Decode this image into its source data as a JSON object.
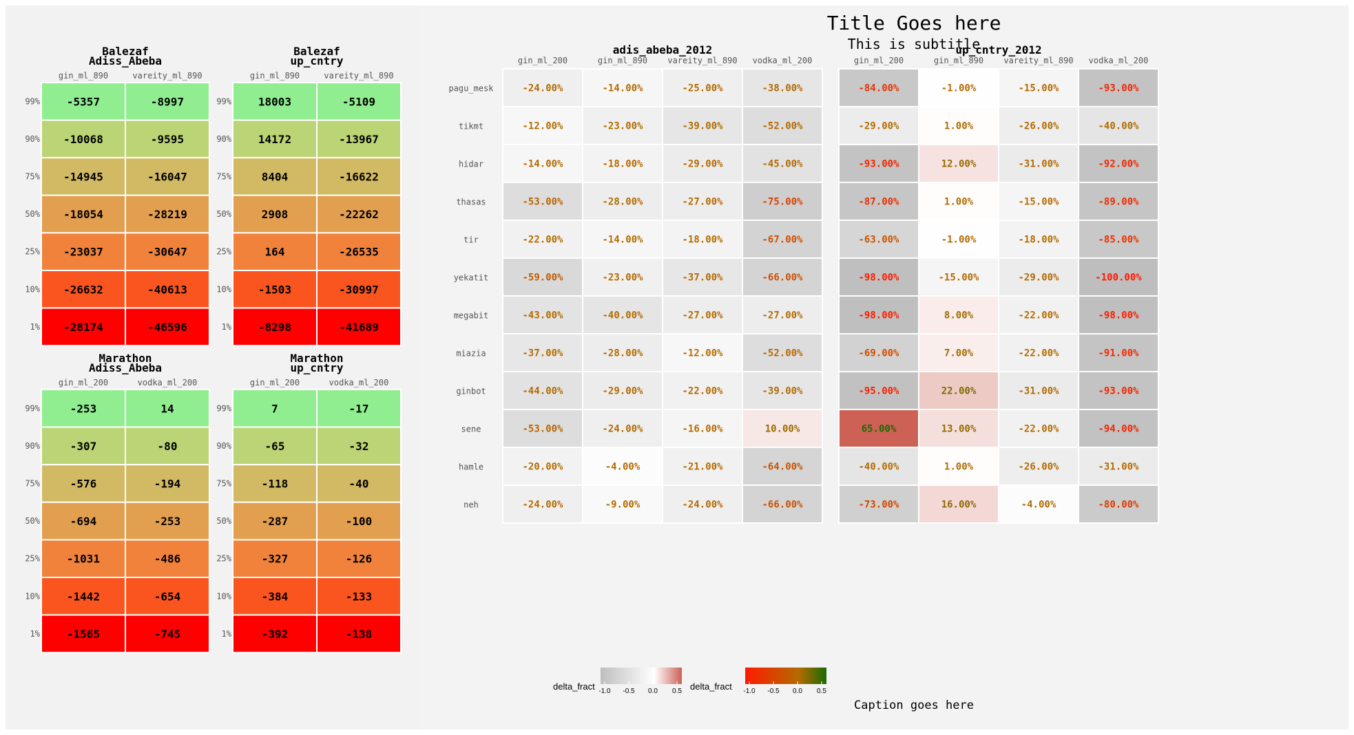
{
  "title": "Title Goes here",
  "subtitle": "This is subtitle",
  "caption": "Caption goes here",
  "colors": {
    "tile_scale": [
      "#ff0000",
      "#fa551e",
      "#f0823c",
      "#e29f50",
      "#d2b963",
      "#bbd475",
      "#90ee90"
    ],
    "heat_low": "#bebebe",
    "heat_mid": "#ffffff",
    "heat_high": "#cd6155",
    "text_low": "#ff1a00",
    "text_mid": "#b36b00",
    "text_high": "#1a6b00"
  },
  "legends": [
    {
      "label": "delta_fract",
      "ticks": [
        "-1.0",
        "-0.5",
        "0.0",
        "0.5"
      ],
      "kind": "fill"
    },
    {
      "label": "delta_fract",
      "ticks": [
        "-1.0",
        "-0.5",
        "0.0",
        "0.5"
      ],
      "kind": "text"
    }
  ],
  "chart_data": [
    {
      "type": "heatmap",
      "title": "Balezaf\nAdiss_Abeba",
      "columns": [
        "gin_ml_890",
        "vareity_ml_890"
      ],
      "rows": [
        "99%",
        "90%",
        "75%",
        "50%",
        "25%",
        "10%",
        "1%"
      ],
      "values": [
        [
          -5357,
          -8997
        ],
        [
          -10068,
          -9595
        ],
        [
          -14945,
          -16047
        ],
        [
          -18054,
          -28219
        ],
        [
          -23037,
          -30647
        ],
        [
          -26632,
          -40613
        ],
        [
          -28174,
          -46596
        ]
      ]
    },
    {
      "type": "heatmap",
      "title": "Balezaf\nup_cntry",
      "columns": [
        "gin_ml_890",
        "vareity_ml_890"
      ],
      "rows": [
        "99%",
        "90%",
        "75%",
        "50%",
        "25%",
        "10%",
        "1%"
      ],
      "values": [
        [
          18003,
          -5109
        ],
        [
          14172,
          -13967
        ],
        [
          8404,
          -16622
        ],
        [
          2908,
          -22262
        ],
        [
          164,
          -26535
        ],
        [
          -1503,
          -30997
        ],
        [
          -8298,
          -41689
        ]
      ]
    },
    {
      "type": "heatmap",
      "title": "Marathon\nAdiss_Abeba",
      "columns": [
        "gin_ml_200",
        "vodka_ml_200"
      ],
      "rows": [
        "99%",
        "90%",
        "75%",
        "50%",
        "25%",
        "10%",
        "1%"
      ],
      "values": [
        [
          -253,
          14
        ],
        [
          -307,
          -80
        ],
        [
          -576,
          -194
        ],
        [
          -694,
          -253
        ],
        [
          -1031,
          -486
        ],
        [
          -1442,
          -654
        ],
        [
          -1565,
          -745
        ]
      ]
    },
    {
      "type": "heatmap",
      "title": "Marathon\nup_cntry",
      "columns": [
        "gin_ml_200",
        "vodka_ml_200"
      ],
      "rows": [
        "99%",
        "90%",
        "75%",
        "50%",
        "25%",
        "10%",
        "1%"
      ],
      "values": [
        [
          7,
          -17
        ],
        [
          -65,
          -32
        ],
        [
          -118,
          -40
        ],
        [
          -287,
          -100
        ],
        [
          -327,
          -126
        ],
        [
          -384,
          -133
        ],
        [
          -392,
          -138
        ]
      ]
    },
    {
      "type": "heatmap",
      "title": "adis_abeba_2012",
      "columns": [
        "gin_ml_200",
        "gin_ml_890",
        "vareity_ml_890",
        "vodka_ml_200"
      ],
      "rows": [
        "pagu_mesk",
        "tikmt",
        "hidar",
        "thasas",
        "tir",
        "yekatit",
        "megabit",
        "miazia",
        "ginbot",
        "sene",
        "hamle",
        "neh"
      ],
      "values": [
        [
          -24,
          -14,
          -25,
          -38
        ],
        [
          -12,
          -23,
          -39,
          -52
        ],
        [
          -14,
          -18,
          -29,
          -45
        ],
        [
          -53,
          -28,
          -27,
          -75
        ],
        [
          -22,
          -14,
          -18,
          -67
        ],
        [
          -59,
          -23,
          -37,
          -66
        ],
        [
          -43,
          -40,
          -27,
          -27
        ],
        [
          -37,
          -28,
          -12,
          -52
        ],
        [
          -44,
          -29,
          -22,
          -39
        ],
        [
          -53,
          -24,
          -16,
          10
        ],
        [
          -20,
          -4,
          -21,
          -64
        ],
        [
          -24,
          -9,
          -24,
          -66
        ]
      ],
      "value_format": "%"
    },
    {
      "type": "heatmap",
      "title": "up_cntry_2012",
      "columns": [
        "gin_ml_200",
        "gin_ml_890",
        "vareity_ml_890",
        "vodka_ml_200"
      ],
      "rows": [
        "pagu_mesk",
        "tikmt",
        "hidar",
        "thasas",
        "tir",
        "yekatit",
        "megabit",
        "miazia",
        "ginbot",
        "sene",
        "hamle",
        "neh"
      ],
      "values": [
        [
          -84,
          -1,
          -15,
          -93
        ],
        [
          -29,
          1,
          -26,
          -40
        ],
        [
          -93,
          12,
          -31,
          -92
        ],
        [
          -87,
          1,
          -15,
          -89
        ],
        [
          -63,
          -1,
          -18,
          -85
        ],
        [
          -98,
          -15,
          -29,
          -100
        ],
        [
          -98,
          8,
          -22,
          -98
        ],
        [
          -69,
          7,
          -22,
          -91
        ],
        [
          -95,
          22,
          -31,
          -93
        ],
        [
          65,
          13,
          -22,
          -94
        ],
        [
          -40,
          1,
          -26,
          -31
        ],
        [
          -73,
          16,
          -4,
          -80
        ]
      ],
      "value_format": "%"
    }
  ]
}
